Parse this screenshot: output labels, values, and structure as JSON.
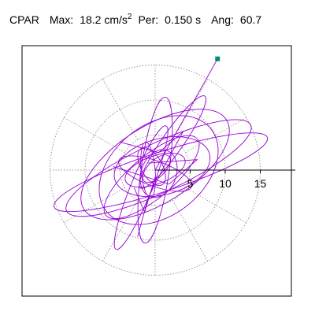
{
  "header": {
    "component": "CPAR",
    "max_label": "Max:",
    "max_value": "18.2 cm/s",
    "max_exponent": "2",
    "per_label": "Per:",
    "per_value": "0.150 s",
    "ang_label": "Ang:",
    "ang_value": "60.7"
  },
  "chart_data": {
    "type": "polar-orbit",
    "max_magnitude": 18.2,
    "max_angle_deg": 60.7,
    "axis_ticks": [
      {
        "value": 5,
        "label": "5"
      },
      {
        "value": 10,
        "label": "10"
      },
      {
        "value": 15,
        "label": "15"
      }
    ],
    "axis_range": [
      0,
      20
    ],
    "grid_rings": [
      5,
      10,
      15
    ],
    "grid_spokes_deg": [
      0,
      30,
      60,
      90,
      120,
      150,
      180,
      210,
      240,
      270,
      300,
      330
    ],
    "grid": true,
    "trace_color": "#9400d3",
    "marker_color": "#008b74",
    "orbit_ellipses": [
      {
        "cx": 0.5,
        "cy": 0.3,
        "a": 14.5,
        "b": 3.5,
        "rot_deg": 25
      },
      {
        "cx": 0.8,
        "cy": -0.3,
        "a": 16.0,
        "b": 2.8,
        "rot_deg": 18
      },
      {
        "cx": 0.0,
        "cy": 0.8,
        "a": 12.0,
        "b": 5.5,
        "rot_deg": 32
      },
      {
        "cx": 0.5,
        "cy": 0.0,
        "a": 9.5,
        "b": 6.5,
        "rot_deg": 38
      },
      {
        "cx": 0.0,
        "cy": 0.0,
        "a": 10.5,
        "b": 2.0,
        "rot_deg": 82
      },
      {
        "cx": -2.0,
        "cy": -2.5,
        "a": 9.5,
        "b": 1.5,
        "rot_deg": 68
      },
      {
        "cx": 2.5,
        "cy": 4.0,
        "a": 8.0,
        "b": 1.5,
        "rot_deg": 55
      },
      {
        "cx": 1.0,
        "cy": 0.5,
        "a": 7.0,
        "b": 4.0,
        "rot_deg": 15
      },
      {
        "cx": -0.5,
        "cy": -1.0,
        "a": 8.5,
        "b": 3.0,
        "rot_deg": 40
      },
      {
        "cx": 0.0,
        "cy": 0.0,
        "a": 4.5,
        "b": 2.0,
        "rot_deg": 20
      },
      {
        "cx": 0.5,
        "cy": -0.5,
        "a": 3.5,
        "b": 2.5,
        "rot_deg": 70
      },
      {
        "cx": -0.5,
        "cy": 0.5,
        "a": 3.0,
        "b": 1.5,
        "rot_deg": 120
      },
      {
        "cx": 0.0,
        "cy": -0.5,
        "a": 5.5,
        "b": 1.8,
        "rot_deg": 160
      },
      {
        "cx": 0.2,
        "cy": 0.2,
        "a": 2.5,
        "b": 1.2,
        "rot_deg": 45
      },
      {
        "cx": -1.0,
        "cy": 0.0,
        "a": 4.0,
        "b": 1.0,
        "rot_deg": 95
      }
    ],
    "orbit_paths": [
      [
        [
          0.0,
          0.0
        ],
        [
          8.91,
          15.88
        ]
      ],
      [
        [
          -5.0,
          4.0
        ],
        [
          0.5,
          2.5
        ],
        [
          4.0,
          5.5
        ],
        [
          1.0,
          0.0
        ]
      ],
      [
        [
          -3.0,
          -2.5
        ],
        [
          -1.5,
          -6.0
        ],
        [
          0.0,
          -1.0
        ]
      ],
      [
        [
          -6.0,
          0.5
        ],
        [
          2.0,
          -2.0
        ],
        [
          6.0,
          1.5
        ],
        [
          -1.0,
          1.0
        ]
      ],
      [
        [
          -2.5,
          -9.5
        ],
        [
          -1.0,
          -4.0
        ],
        [
          1.0,
          0.0
        ]
      ]
    ]
  }
}
